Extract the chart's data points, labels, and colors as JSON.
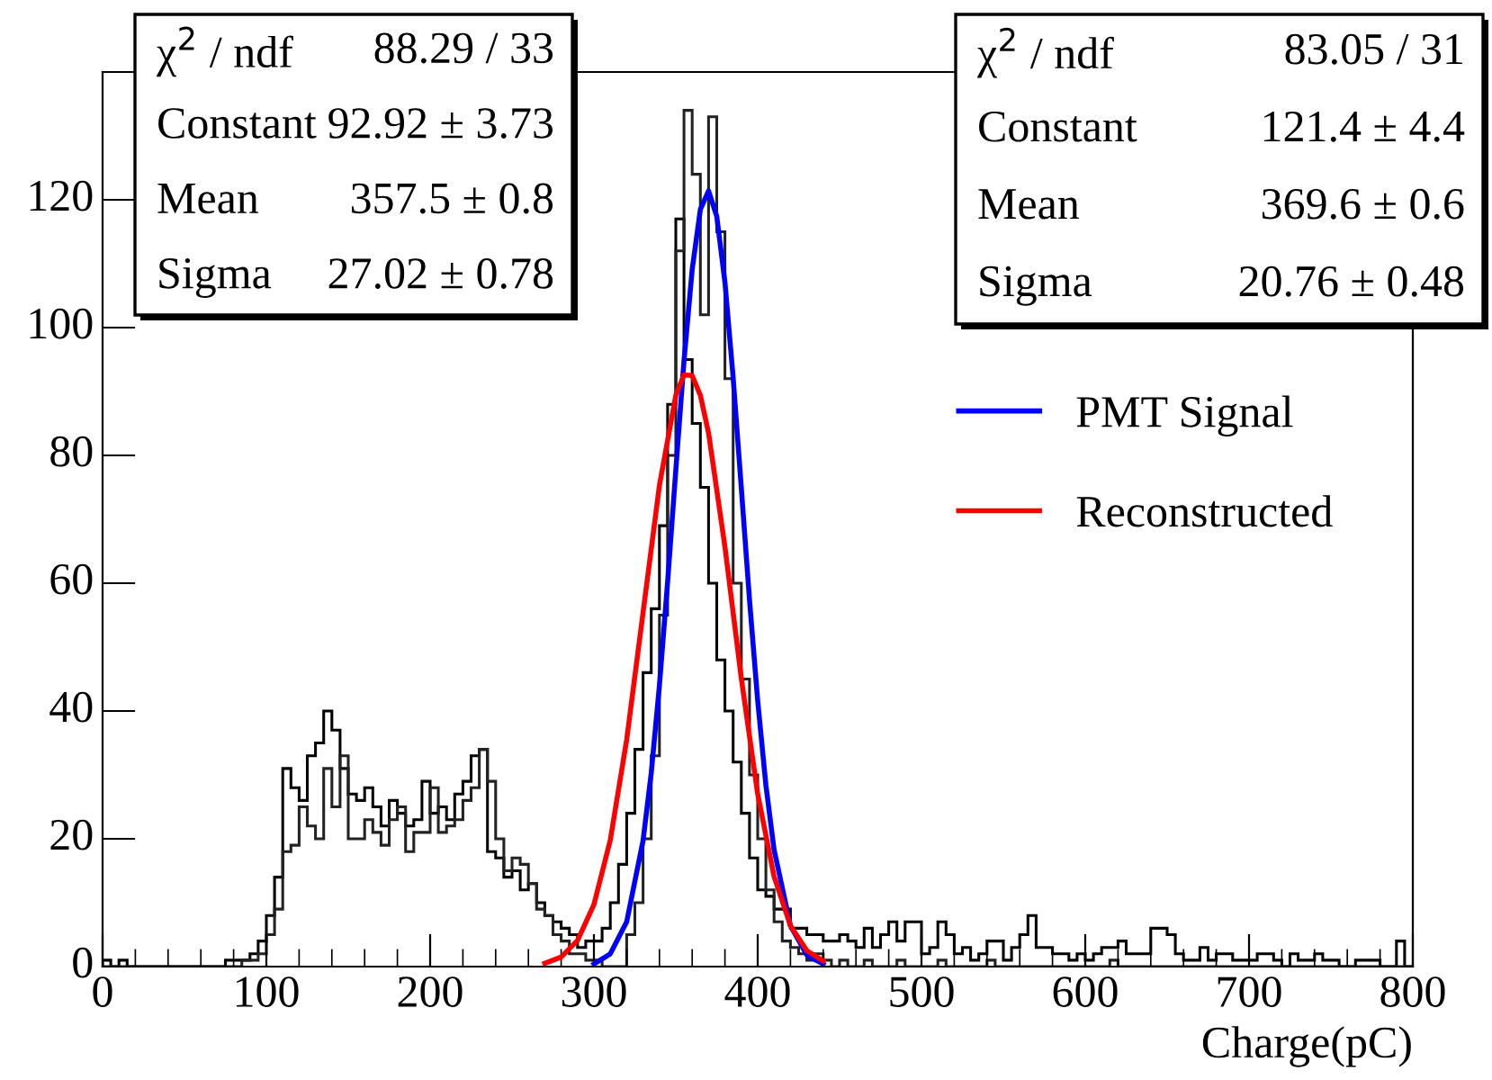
{
  "chart_data": {
    "type": "histogram",
    "xlabel": "Charge(pC)",
    "bins": [
      0,
      5,
      10,
      15,
      20,
      25,
      30,
      35,
      40,
      45,
      50,
      55,
      60,
      65,
      70,
      75,
      80,
      85,
      90,
      95,
      100,
      105,
      110,
      115,
      120,
      125,
      130,
      135,
      140,
      145,
      150,
      155,
      160,
      165,
      170,
      175,
      180,
      185,
      190,
      195,
      200,
      205,
      210,
      215,
      220,
      225,
      230,
      235,
      240,
      245,
      250,
      255,
      260,
      265,
      270,
      275,
      280,
      285,
      290,
      295,
      300,
      305,
      310,
      315,
      320,
      325,
      330,
      335,
      340,
      345,
      350,
      355,
      360,
      365,
      370,
      375,
      380,
      385,
      390,
      395,
      400,
      405,
      410,
      415,
      420,
      425,
      430,
      435,
      440,
      445,
      450,
      455,
      460,
      465,
      470,
      475,
      480,
      485,
      490,
      495,
      500,
      505,
      510,
      515,
      520,
      525,
      530,
      535,
      540,
      545,
      550,
      555,
      560,
      565,
      570,
      575,
      580,
      585,
      590,
      595,
      600,
      605,
      610,
      615,
      620,
      625,
      630,
      635,
      640,
      645,
      650,
      655,
      660,
      665,
      670,
      675,
      680,
      685,
      690,
      695,
      700,
      705,
      710,
      715,
      720,
      725,
      730,
      735,
      740,
      745,
      750,
      755,
      760,
      765,
      770,
      775,
      780,
      785,
      790,
      795,
      800
    ],
    "series": [
      {
        "color": "#000000",
        "values": [
          1,
          0,
          1,
          0,
          0,
          0,
          0,
          0,
          0,
          0,
          0,
          0,
          0,
          0,
          0,
          1,
          1,
          1,
          2,
          4,
          8,
          14,
          31,
          28,
          26,
          33,
          35,
          40,
          37,
          31,
          27,
          26,
          28,
          25,
          22,
          26,
          24,
          22,
          23,
          29,
          24,
          25,
          23,
          27,
          29,
          33,
          34,
          18,
          17,
          14,
          15,
          12,
          13,
          10,
          8,
          7,
          6,
          5,
          3,
          4,
          4,
          6,
          10,
          16,
          24,
          34,
          46,
          56,
          69,
          88,
          117,
          95,
          85,
          75,
          60,
          48,
          40,
          32,
          24,
          17,
          12,
          11,
          9,
          9,
          6,
          6,
          5,
          5,
          4,
          4,
          5,
          4,
          3,
          6,
          3,
          5,
          7,
          4,
          7,
          7,
          2,
          3,
          7,
          5,
          2,
          3,
          1,
          2,
          4,
          4,
          1,
          3,
          5,
          8,
          3,
          3,
          2,
          2,
          1,
          2,
          1,
          2,
          3,
          3,
          4,
          2,
          2,
          2,
          6,
          6,
          5,
          2,
          1,
          1,
          3,
          1,
          2,
          2,
          1,
          1,
          1,
          2,
          2,
          1,
          0,
          2,
          1,
          1,
          2,
          1,
          1,
          0,
          0,
          1,
          1,
          1,
          0,
          0,
          4,
          0
        ]
      },
      {
        "color": "#222222",
        "values": [
          0,
          0,
          0,
          0,
          0,
          0,
          0,
          0,
          0,
          0,
          0,
          0,
          0,
          0,
          0,
          0,
          0,
          1,
          1,
          2,
          5,
          9,
          18,
          19,
          25,
          22,
          20,
          31,
          25,
          33,
          20,
          20,
          23,
          21,
          19,
          23,
          25,
          18,
          21,
          21,
          28,
          21,
          22,
          23,
          26,
          28,
          34,
          29,
          20,
          15,
          17,
          16,
          13,
          9,
          8,
          5,
          4,
          2,
          2,
          1,
          1,
          0,
          0,
          0,
          5,
          10,
          20,
          33,
          55,
          80,
          112,
          134,
          124,
          102,
          133,
          115,
          92,
          60,
          45,
          30,
          20,
          12,
          7,
          4,
          3,
          2,
          1,
          2,
          1,
          0,
          1,
          0,
          0,
          1,
          0,
          0,
          0,
          1,
          0,
          0,
          0,
          0,
          1,
          0,
          0,
          0,
          0,
          0,
          1,
          0,
          0,
          0,
          0,
          0,
          0,
          0,
          0,
          0,
          0,
          0,
          0,
          0,
          0,
          1,
          0,
          0,
          0,
          0,
          0,
          0,
          0,
          0,
          0,
          0,
          0,
          0,
          0,
          0,
          0,
          0,
          0,
          0,
          0,
          0,
          0,
          0,
          0,
          0,
          0,
          0,
          0,
          0,
          0,
          0,
          0,
          0,
          0,
          0,
          0,
          0
        ]
      },
      {
        "type": "line",
        "name": "PMT Signal",
        "color": "#0000ff",
        "x": [
          300,
          310,
          320,
          330,
          335,
          340,
          345,
          350,
          355,
          360,
          365,
          370,
          375,
          380,
          385,
          390,
          395,
          400,
          405,
          410,
          420,
          430,
          440
        ],
        "values": [
          0.4,
          2.0,
          7.0,
          19.7,
          30.3,
          44.0,
          60.2,
          77.7,
          94.8,
          109.1,
          118.5,
          121.4,
          117.4,
          107.1,
          92.2,
          74.9,
          57.4,
          41.6,
          28.4,
          18.3,
          6.4,
          1.8,
          0.4
        ]
      },
      {
        "type": "line",
        "name": "Reconstructed",
        "color": "#ff0000",
        "x": [
          270,
          280,
          290,
          300,
          310,
          320,
          330,
          340,
          350,
          355,
          360,
          365,
          370,
          380,
          390,
          400,
          410,
          420,
          430,
          440
        ],
        "values": [
          0.5,
          1.5,
          4.1,
          9.7,
          19.8,
          35.5,
          55.4,
          75.3,
          89.4,
          92.6,
          92.5,
          89.4,
          83.5,
          65.7,
          45.1,
          27.0,
          14.1,
          6.4,
          2.5,
          0.9
        ]
      }
    ],
    "xlim": [
      0,
      800
    ],
    "xticks": [
      0,
      100,
      200,
      300,
      400,
      500,
      600,
      700,
      800
    ],
    "ylim": [
      0,
      140
    ],
    "yticks": [
      0,
      20,
      40,
      60,
      80,
      100,
      120
    ],
    "legend": "right",
    "annotations": [
      "χ$^{2}$ / ndf",
      "88.29 / 33",
      "Constant",
      "92.92 ± 3.73",
      "Mean",
      "357.5 ± 0.8",
      "Sigma",
      "27.02 ± 0.78",
      "χ$^{2}$ / ndf",
      "83.05 / 31",
      "Constant",
      "121.4 ± 4.4",
      "Mean",
      "369.6 ± 0.6",
      "Sigma",
      "20.76 ± 0.48"
    ]
  }
}
